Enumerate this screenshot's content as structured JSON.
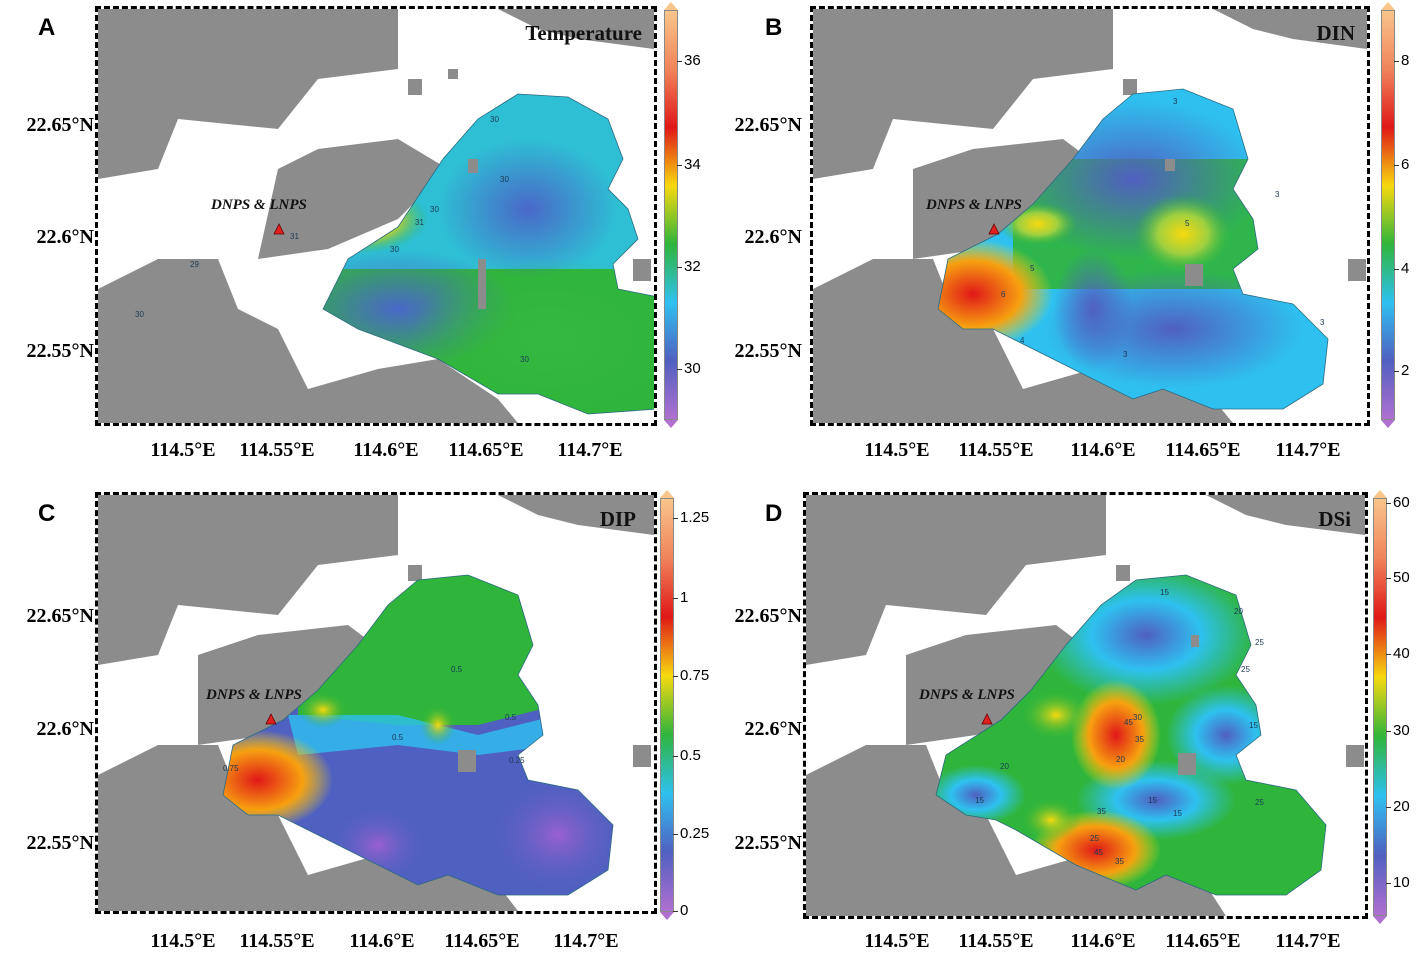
{
  "site_label": "DNPS & LNPS",
  "x_ticks": [
    "114.5°E",
    "114.55°E",
    "114.6°E",
    "114.65°E",
    "114.7°E"
  ],
  "y_ticks": [
    "22.65°N",
    "22.6°N",
    "22.55°N"
  ],
  "panels": [
    {
      "letter": "A",
      "title": "Temperature",
      "colorbar_ticks": [
        "36",
        "34",
        "32",
        "30"
      ],
      "contour_labels": [
        "30",
        "30",
        "30",
        "30",
        "31",
        "31",
        "29",
        "30",
        "30"
      ]
    },
    {
      "letter": "B",
      "title": "DIN",
      "colorbar_ticks": [
        "8",
        "6",
        "4",
        "2"
      ],
      "contour_labels": [
        "3",
        "3",
        "5",
        "5",
        "6",
        "4",
        "3",
        "3"
      ]
    },
    {
      "letter": "C",
      "title": "DIP",
      "colorbar_ticks": [
        "1.25",
        "1",
        "0.75",
        "0.5",
        "0.25",
        "0"
      ],
      "contour_labels": [
        "0.5",
        "0.5",
        "0.5",
        "0.75",
        "0.25"
      ]
    },
    {
      "letter": "D",
      "title": "DSi",
      "colorbar_ticks": [
        "60",
        "50",
        "40",
        "30",
        "20",
        "10"
      ],
      "contour_labels": [
        "15",
        "20",
        "25",
        "25",
        "15",
        "30",
        "45",
        "35",
        "20",
        "20",
        "15",
        "15",
        "35",
        "25",
        "45",
        "35",
        "15",
        "25"
      ]
    }
  ],
  "colors": {
    "land": "#8c8c8c",
    "water": "#ffffff",
    "colorbar": [
      "#f9c58a",
      "#f0845a",
      "#e01818",
      "#f7d90f",
      "#2fb53b",
      "#2ec1f0",
      "#5060c0",
      "#b070d0"
    ],
    "site_marker": "#e02020"
  }
}
